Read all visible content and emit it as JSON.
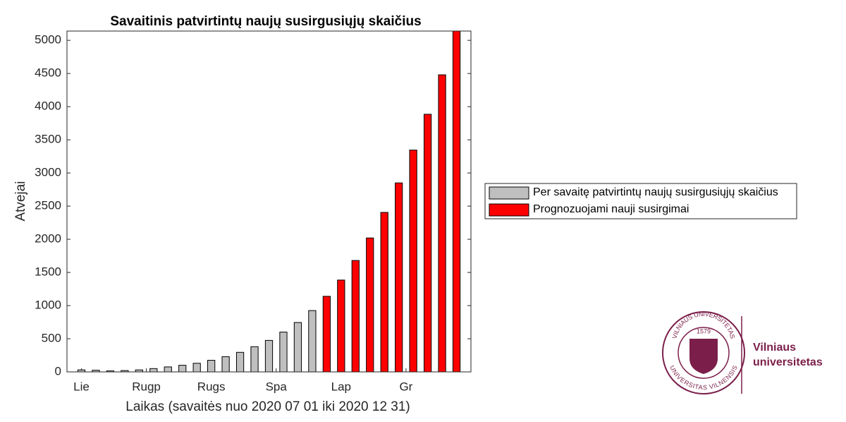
{
  "chart_data": {
    "type": "bar",
    "title": "Savaitinis patvirtintų naujų susirgusiųjų skaičius",
    "x_label": "Laikas (savaitės nuo 2020 07 01 iki 2020 12 31)",
    "y_label": "Atvejai",
    "x": [
      1,
      2,
      3,
      4,
      5,
      6,
      7,
      8,
      9,
      10,
      11,
      12,
      13,
      14,
      15,
      16,
      17,
      18,
      19,
      20,
      21,
      22,
      23,
      24,
      25,
      26,
      27
    ],
    "xlim": [
      0,
      28
    ],
    "xticks": [
      {
        "value": 1,
        "label": "Lie"
      },
      {
        "value": 5.5,
        "label": "Rugp"
      },
      {
        "value": 10,
        "label": "Rugs"
      },
      {
        "value": 14.5,
        "label": "Spa"
      },
      {
        "value": 19,
        "label": "Lap"
      },
      {
        "value": 23.5,
        "label": "Gr"
      }
    ],
    "ylim": [
      0,
      5140
    ],
    "yticks": [
      0,
      500,
      1000,
      1500,
      2000,
      2500,
      3000,
      3500,
      4000,
      4500,
      5000
    ],
    "series": [
      {
        "name": "Per savaitę patvirtintų naujų susirgusiųjų skaičius",
        "color": "#bfbfbf",
        "values": [
          30,
          25,
          15,
          20,
          30,
          50,
          75,
          100,
          130,
          175,
          230,
          295,
          380,
          475,
          600,
          745,
          925,
          null,
          null,
          null,
          null,
          null,
          null,
          null,
          null,
          null,
          null
        ]
      },
      {
        "name": "Prognozuojami nauji susirgimai",
        "color": "#ff0000",
        "values": [
          null,
          null,
          null,
          null,
          null,
          null,
          null,
          null,
          null,
          null,
          null,
          null,
          null,
          null,
          null,
          null,
          null,
          1140,
          1385,
          1680,
          2020,
          2405,
          2850,
          3345,
          3885,
          4480,
          5140
        ]
      }
    ]
  },
  "logo": {
    "ring_top": "VILNIAUS UNIVERSITETAS",
    "year": "1579",
    "ring_bottom": "UNIVERSITAS VILNENSIS",
    "name_line1": "Vilniaus",
    "name_line2": "universitetas"
  }
}
